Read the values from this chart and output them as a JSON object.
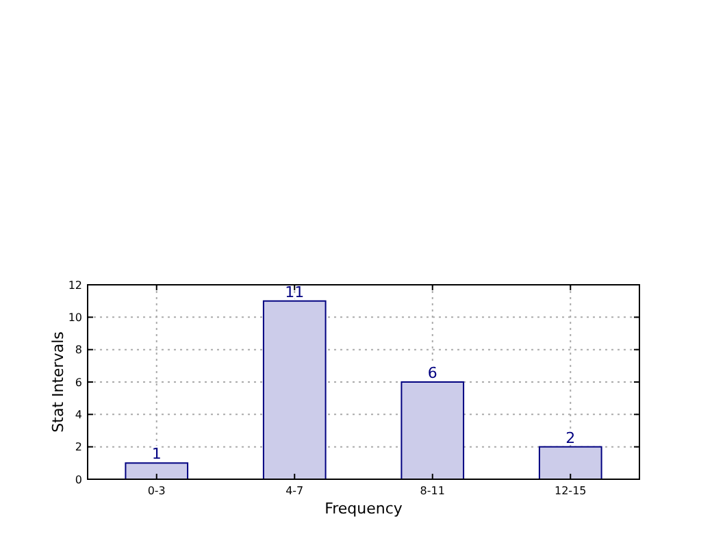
{
  "chart_data": {
    "type": "bar",
    "xlabel": "Frequency",
    "ylabel": "Stat Intervals",
    "categories": [
      "0-3",
      "4-7",
      "8-11",
      "12-15"
    ],
    "values": [
      1,
      11,
      6,
      2
    ],
    "color": "#ccccea",
    "ylim": [
      0,
      12
    ],
    "yticks": [
      0,
      2,
      4,
      6,
      8,
      10,
      12
    ],
    "grid": true,
    "data_labels": true
  }
}
